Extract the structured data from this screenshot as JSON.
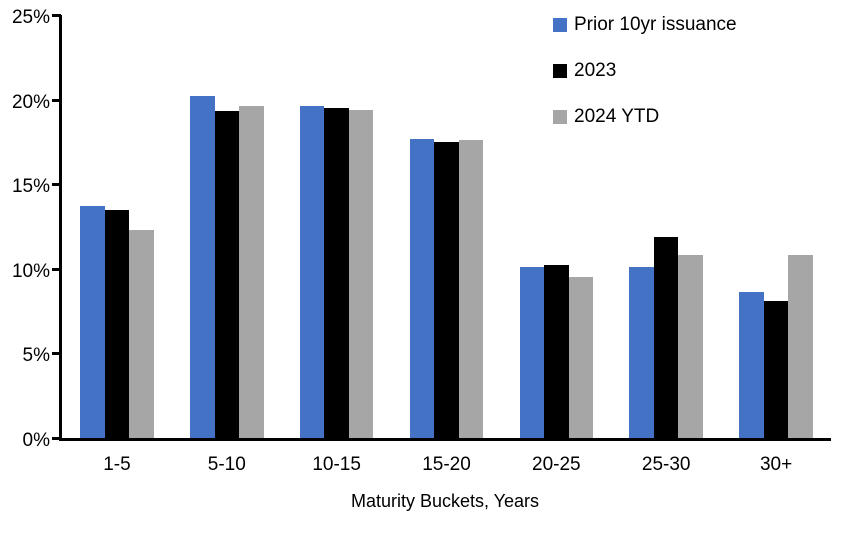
{
  "chart_data": {
    "type": "bar",
    "title": "",
    "xlabel": "Maturity Buckets, Years",
    "ylabel": "",
    "categories": [
      "1-5",
      "5-10",
      "10-15",
      "15-20",
      "20-25",
      "25-30",
      "30+"
    ],
    "series": [
      {
        "name": "Prior 10yr issuance",
        "color": "#4472C4",
        "values": [
          13.7,
          20.2,
          19.6,
          17.7,
          10.1,
          10.1,
          8.6
        ]
      },
      {
        "name": "2023",
        "color": "#000000",
        "values": [
          13.5,
          19.3,
          19.5,
          17.5,
          10.2,
          11.9,
          8.1
        ]
      },
      {
        "name": "2024 YTD",
        "color": "#A6A6A6",
        "values": [
          12.3,
          19.6,
          19.4,
          17.6,
          9.5,
          10.8,
          10.8
        ]
      }
    ],
    "ylim": [
      0,
      25
    ],
    "yticks": [
      0,
      5,
      10,
      15,
      20,
      25
    ],
    "ytick_suffix": "%",
    "grid": false,
    "legend_position": "top-right",
    "axis_color": "#000000"
  }
}
